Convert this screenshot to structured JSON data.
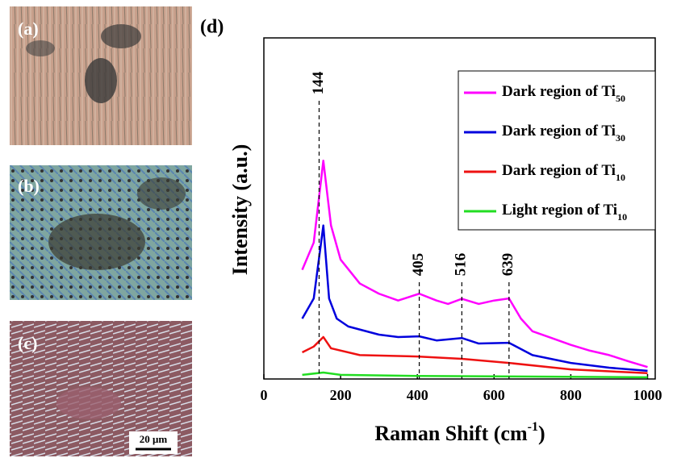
{
  "panels": [
    {
      "label": "(a)"
    },
    {
      "label": "(b)"
    },
    {
      "label": "(c)"
    }
  ],
  "scale_bar": "20 μm",
  "chart_data": {
    "type": "line",
    "panel_label": "(d)",
    "xlabel": {
      "text": "Raman Shift (cm",
      "sup": "-1",
      "tail": ")"
    },
    "ylabel": "Intensity (a.u.)",
    "xlim": [
      0,
      1020
    ],
    "xticks": [
      0,
      200,
      400,
      600,
      800,
      1000
    ],
    "ylim": [
      0,
      100
    ],
    "peaks": [
      144,
      405,
      516,
      639
    ],
    "legend": "upper right",
    "series": [
      {
        "name": "Dark region of Ti",
        "subscript": "50",
        "color": "#ff00ff",
        "x": [
          100,
          130,
          155,
          175,
          200,
          250,
          300,
          350,
          405,
          450,
          480,
          516,
          560,
          600,
          639,
          670,
          700,
          750,
          800,
          850,
          900,
          950,
          1000
        ],
        "values": [
          32,
          40,
          64,
          45,
          35,
          28,
          25,
          23,
          25,
          23,
          22,
          23.5,
          22,
          23,
          23.6,
          17.7,
          14,
          12,
          10,
          8.3,
          7,
          5.2,
          3.5
        ]
      },
      {
        "name": "Dark region of Ti",
        "subscript": "30",
        "color": "#0000dd",
        "x": [
          100,
          130,
          155,
          170,
          190,
          220,
          300,
          350,
          405,
          450,
          516,
          560,
          639,
          700,
          800,
          900,
          1000
        ],
        "values": [
          17.7,
          23.6,
          45,
          23.6,
          17.7,
          15.4,
          13,
          12.3,
          12.5,
          11.3,
          12,
          10.4,
          10.6,
          7,
          4.7,
          3.3,
          2.4
        ]
      },
      {
        "name": "Dark region of Ti",
        "subscript": "10",
        "color": "#ee1111",
        "x": [
          100,
          130,
          155,
          175,
          250,
          400,
          516,
          639,
          800,
          1000
        ],
        "values": [
          7.8,
          9.5,
          12.3,
          9,
          7,
          6.6,
          5.9,
          4.7,
          2.8,
          1.7
        ]
      },
      {
        "name": "Light region of Ti",
        "subscript": "10",
        "color": "#22dd22",
        "x": [
          100,
          155,
          200,
          400,
          1000
        ],
        "values": [
          1.2,
          1.9,
          1.2,
          0.9,
          0.5
        ]
      }
    ]
  }
}
